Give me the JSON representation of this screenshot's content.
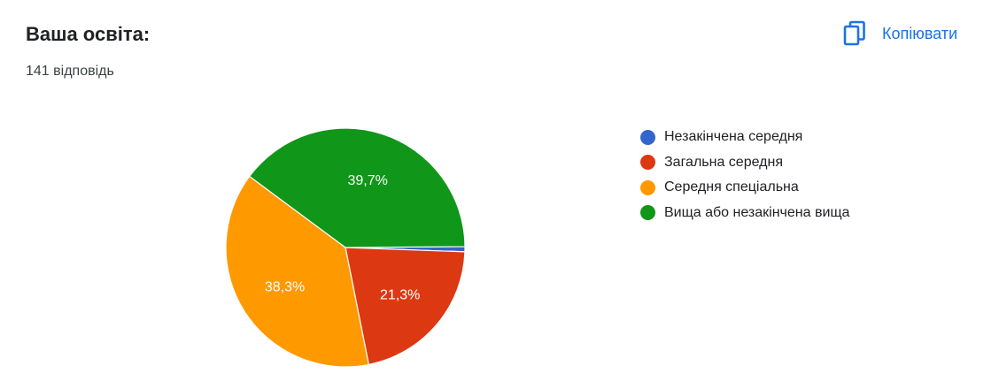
{
  "header": {
    "title": "Ваша освіта:",
    "responses": "141 відповідь",
    "copy_label": "Копіювати",
    "copy_icon": "copy-icon"
  },
  "chart_data": {
    "type": "pie",
    "title": "Ваша освіта:",
    "categories": [
      "Незакінчена середня",
      "Загальна середня",
      "Середня спеціальна",
      "Вища або незакінчена вища"
    ],
    "values": [
      0.7,
      21.3,
      38.3,
      39.7
    ],
    "labels": [
      "",
      "21,3%",
      "38,3%",
      "39,7%"
    ],
    "colors": [
      "#3366cc",
      "#dc3912",
      "#ff9900",
      "#109618"
    ],
    "legend": "right"
  }
}
